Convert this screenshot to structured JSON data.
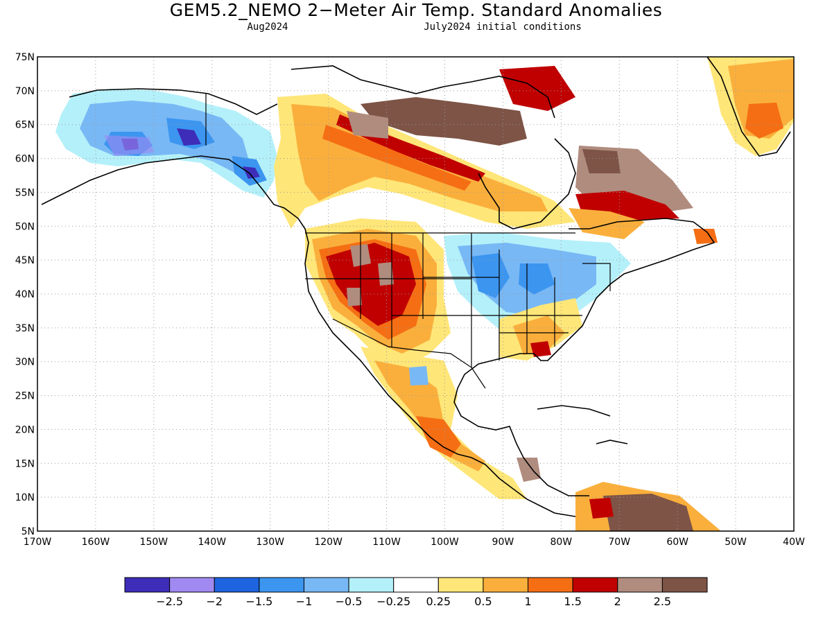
{
  "header": {
    "title": "GEM5.2_NEMO 2−Meter Air Temp. Standard Anomalies",
    "valid_month": "Aug2024",
    "initial_conditions": "July2024 initial conditions"
  },
  "map": {
    "projection": "cylindrical lat/lon",
    "lon_range": [
      -170,
      -40
    ],
    "lat_range": [
      5,
      75
    ],
    "lat_labels": [
      "75N",
      "70N",
      "65N",
      "60N",
      "55N",
      "50N",
      "45N",
      "40N",
      "35N",
      "30N",
      "25N",
      "20N",
      "15N",
      "10N",
      "5N"
    ],
    "lon_labels": [
      "170W",
      "160W",
      "150W",
      "140W",
      "130W",
      "120W",
      "110W",
      "100W",
      "90W",
      "80W",
      "70W",
      "60W",
      "50W",
      "40W"
    ],
    "grid": true
  },
  "legend": {
    "colors": [
      "#3d2db8",
      "#a08af2",
      "#1e64e0",
      "#3c96f0",
      "#78b8f5",
      "#b4f0fa",
      "#ffffff",
      "#ffe678",
      "#faaf3c",
      "#f56e14",
      "#c00000",
      "#b08c7e",
      "#7d5446"
    ],
    "labels": [
      "−2.5",
      "−2",
      "−1.5",
      "−1",
      "−0.5",
      "−0.25",
      "0.25",
      "0.5",
      "1",
      "1.5",
      "2",
      "2.5"
    ]
  }
}
